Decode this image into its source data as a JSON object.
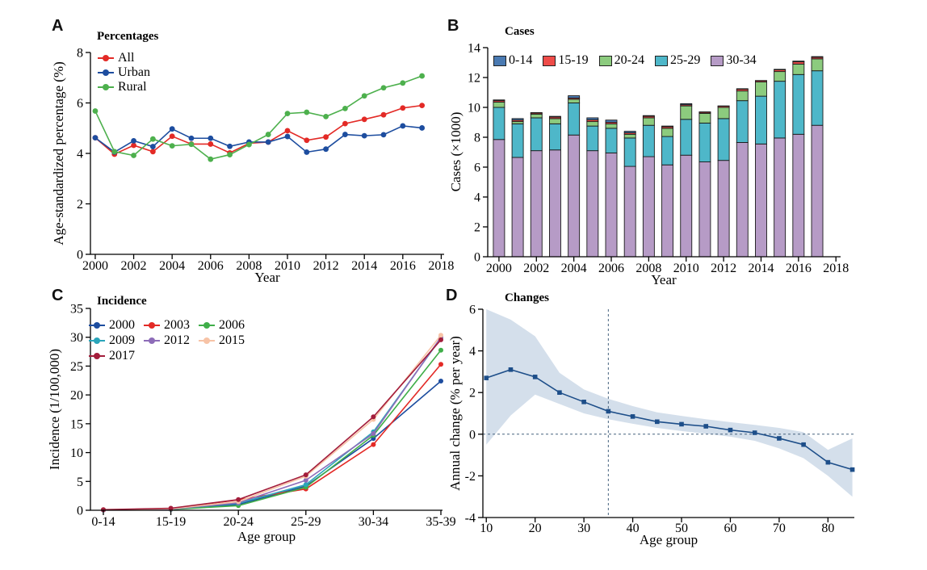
{
  "panels": {
    "a": "A",
    "b": "B",
    "c": "C",
    "d": "D"
  },
  "chart_data": [
    {
      "panel": "A",
      "type": "line",
      "legend_title": "Percentages",
      "legend_position": "top-left",
      "xlabel": "Year",
      "ylabel": "Age-standardized percentage (%)",
      "xlim": [
        1999.75,
        2018.15
      ],
      "ylim": [
        0,
        8
      ],
      "xticks": [
        2000,
        2002,
        2004,
        2006,
        2008,
        2010,
        2012,
        2014,
        2016,
        2018
      ],
      "yticks": [
        0,
        2,
        4,
        6,
        8
      ],
      "x": [
        2000,
        2001,
        2002,
        2003,
        2004,
        2005,
        2006,
        2007,
        2008,
        2009,
        2010,
        2011,
        2012,
        2013,
        2014,
        2015,
        2016,
        2017
      ],
      "series": [
        {
          "name": "All",
          "color": "#e32a26",
          "marker": "circle",
          "values": [
            4.62,
            3.97,
            4.32,
            4.07,
            4.68,
            4.37,
            4.37,
            4.02,
            4.4,
            4.45,
            4.9,
            4.52,
            4.65,
            5.18,
            5.35,
            5.53,
            5.8,
            5.9
          ]
        },
        {
          "name": "Urban",
          "color": "#1d4d9f",
          "marker": "circle",
          "values": [
            4.62,
            4.05,
            4.5,
            4.27,
            4.97,
            4.6,
            4.6,
            4.28,
            4.45,
            4.45,
            4.67,
            4.05,
            4.17,
            4.75,
            4.7,
            4.74,
            5.09,
            5.01
          ]
        },
        {
          "name": "Rural",
          "color": "#4db04d",
          "marker": "circle",
          "values": [
            5.68,
            4.07,
            3.92,
            4.57,
            4.3,
            4.36,
            3.77,
            3.95,
            4.35,
            4.75,
            5.58,
            5.63,
            5.46,
            5.78,
            6.28,
            6.6,
            6.79,
            7.07
          ]
        }
      ]
    },
    {
      "panel": "B",
      "type": "bar",
      "stacked": true,
      "legend_title": "Cases",
      "legend_position": "top",
      "xlabel": "Year",
      "ylabel": "Cases (×1000)",
      "xlim": [
        1999.4,
        2018.25
      ],
      "ylim": [
        0,
        14
      ],
      "xticks": [
        2000,
        2002,
        2004,
        2006,
        2008,
        2010,
        2012,
        2014,
        2016,
        2018
      ],
      "yticks": [
        0,
        2,
        4,
        6,
        8,
        10,
        12,
        14
      ],
      "categories": [
        2000,
        2001,
        2002,
        2003,
        2004,
        2005,
        2006,
        2007,
        2008,
        2009,
        2010,
        2011,
        2012,
        2013,
        2014,
        2015,
        2016,
        2017
      ],
      "series": [
        {
          "name": "30-34",
          "color": "#b69bc6",
          "values": [
            7.85,
            6.65,
            7.1,
            7.15,
            8.15,
            7.1,
            6.95,
            6.05,
            6.7,
            6.15,
            6.8,
            6.35,
            6.45,
            7.65,
            7.55,
            7.95,
            8.2,
            8.8
          ]
        },
        {
          "name": "25-29",
          "color": "#4eb7c9",
          "values": [
            2.15,
            2.25,
            2.2,
            1.75,
            2.15,
            1.65,
            1.65,
            1.9,
            2.1,
            1.9,
            2.4,
            2.6,
            2.8,
            2.8,
            3.2,
            3.8,
            4.0,
            3.65
          ]
        },
        {
          "name": "20-24",
          "color": "#8ccb7e",
          "values": [
            0.35,
            0.15,
            0.25,
            0.35,
            0.25,
            0.3,
            0.3,
            0.25,
            0.5,
            0.55,
            0.9,
            0.65,
            0.75,
            0.65,
            0.95,
            0.65,
            0.7,
            0.8
          ]
        },
        {
          "name": "15-19",
          "color": "#ef4c49",
          "values": [
            0.1,
            0.1,
            0.07,
            0.1,
            0.08,
            0.12,
            0.1,
            0.1,
            0.1,
            0.1,
            0.08,
            0.07,
            0.08,
            0.12,
            0.08,
            0.12,
            0.15,
            0.1
          ]
        },
        {
          "name": "0-14",
          "color": "#4a7ab2",
          "values": [
            0.05,
            0.1,
            0.03,
            0.05,
            0.15,
            0.13,
            0.15,
            0.1,
            0.05,
            0.05,
            0.07,
            0.03,
            0.02,
            0.03,
            0.02,
            0.03,
            0.05,
            0.05
          ]
        }
      ],
      "legend_items": [
        {
          "label": "0-14",
          "color": "#4a7ab2"
        },
        {
          "label": "15-19",
          "color": "#ef4c49"
        },
        {
          "label": "20-24",
          "color": "#8ccb7e"
        },
        {
          "label": "25-29",
          "color": "#4eb7c9"
        },
        {
          "label": "30-34",
          "color": "#b69bc6"
        }
      ]
    },
    {
      "panel": "C",
      "type": "line",
      "legend_title": "Incidence",
      "legend_position": "top-left",
      "xlabel": "Age group",
      "ylabel": "Incidence (1/100,000)",
      "categories": [
        "0-14",
        "15-19",
        "20-24",
        "25-29",
        "30-34",
        "35-39"
      ],
      "ylim": [
        0,
        35
      ],
      "yticks": [
        0,
        5,
        10,
        15,
        20,
        25,
        30,
        35
      ],
      "series": [
        {
          "name": "2000",
          "color": "#1d4d9f",
          "marker": "circle",
          "values": [
            0.05,
            0.15,
            1.0,
            4.2,
            12.45,
            22.4
          ]
        },
        {
          "name": "2003",
          "color": "#e32a26",
          "marker": "circle",
          "values": [
            0.05,
            0.3,
            1.8,
            3.7,
            11.4,
            25.3
          ]
        },
        {
          "name": "2006",
          "color": "#3fae49",
          "marker": "circle",
          "values": [
            0.05,
            0.15,
            0.8,
            4.0,
            13.0,
            27.75
          ]
        },
        {
          "name": "2009",
          "color": "#2aa5ba",
          "marker": "circle",
          "values": [
            0.05,
            0.2,
            1.2,
            4.45,
            13.6,
            29.85
          ]
        },
        {
          "name": "2012",
          "color": "#8d6cb8",
          "marker": "circle",
          "values": [
            0.05,
            0.2,
            1.3,
            5.2,
            13.3,
            30.0
          ]
        },
        {
          "name": "2015",
          "color": "#f7c3a6",
          "marker": "circle",
          "values": [
            0.1,
            0.25,
            1.5,
            5.9,
            15.75,
            30.35
          ]
        },
        {
          "name": "2017",
          "color": "#a31d3b",
          "marker": "circle",
          "values": [
            0.1,
            0.35,
            1.85,
            6.15,
            16.2,
            29.55
          ]
        }
      ]
    },
    {
      "panel": "D",
      "type": "line-band",
      "legend_title": "Changes",
      "xlabel": "Age group",
      "ylabel": "Annual change (% per year)",
      "xlim": [
        9.3,
        85.4
      ],
      "ylim": [
        -4,
        6
      ],
      "xticks": [
        10,
        20,
        30,
        40,
        50,
        60,
        70,
        80
      ],
      "yticks": [
        -4,
        -2,
        0,
        2,
        4,
        6
      ],
      "x": [
        10,
        15,
        20,
        25,
        30,
        35,
        40,
        45,
        50,
        55,
        60,
        65,
        70,
        75,
        80,
        85
      ],
      "series": [
        {
          "name": "Annual change",
          "color": "#1d4e89",
          "marker": "square",
          "values": [
            2.7,
            3.1,
            2.75,
            2.0,
            1.55,
            1.1,
            0.85,
            0.6,
            0.48,
            0.38,
            0.2,
            0.07,
            -0.2,
            -0.5,
            -1.35,
            -1.7
          ]
        }
      ],
      "band": {
        "color": "#d4dfeb",
        "upper": [
          6.0,
          5.5,
          4.7,
          2.95,
          2.15,
          1.7,
          1.35,
          1.05,
          0.88,
          0.72,
          0.58,
          0.45,
          0.3,
          0.1,
          -0.75,
          -0.2
        ],
        "lower": [
          -0.5,
          0.9,
          1.9,
          1.45,
          1.0,
          0.72,
          0.5,
          0.3,
          0.15,
          0.02,
          -0.12,
          -0.32,
          -0.68,
          -1.15,
          -2.0,
          -3.0
        ]
      },
      "ref_lines": {
        "horizontal_y": 0,
        "vertical_x": 35,
        "style": "dashed",
        "color": "#46627e"
      }
    }
  ]
}
